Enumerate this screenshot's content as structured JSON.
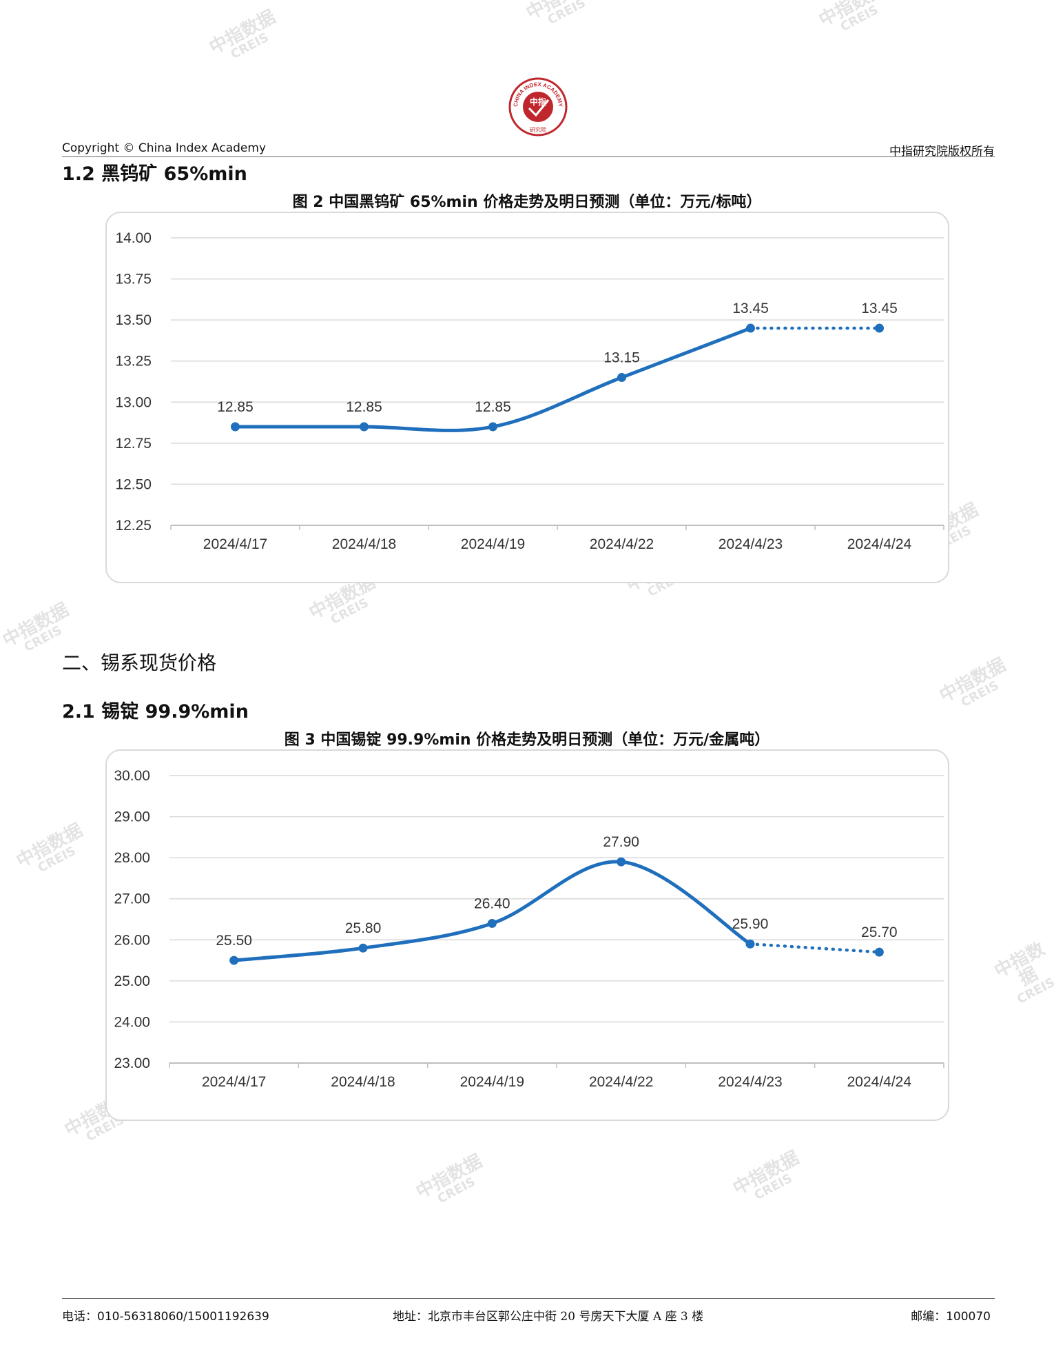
{
  "header": {
    "logo_text": "CHINA INDEX ACADEMY",
    "logo_center": "中指",
    "logo_bottom": "研究院",
    "copyright": "Copyright © China Index Academy",
    "rights": "中指研究院版权所有"
  },
  "watermark": {
    "cn": "中指数据",
    "en": "CREIS"
  },
  "section_1_2": {
    "heading": "1.2 黑钨矿 65%min"
  },
  "section_2": {
    "heading": "二、锡系现货价格"
  },
  "section_2_1": {
    "heading": "2.1 锡锭 99.9%min"
  },
  "chart_data": [
    {
      "type": "line",
      "title": "图 2 中国黑钨矿 65%min 价格走势及明日预测（单位：万元/标吨）",
      "categories": [
        "2024/4/17",
        "2024/4/18",
        "2024/4/19",
        "2024/4/22",
        "2024/4/23",
        "2024/4/24"
      ],
      "values": [
        12.85,
        12.85,
        12.85,
        13.15,
        13.45,
        13.45
      ],
      "data_labels": [
        "12.85",
        "12.85",
        "12.85",
        "13.15",
        "13.45",
        "13.45"
      ],
      "forecast_from_index": 4,
      "ylim": [
        12.25,
        14.0
      ],
      "yticks": [
        "12.25",
        "12.50",
        "12.75",
        "13.00",
        "13.25",
        "13.50",
        "13.75",
        "14.00"
      ],
      "grid": true,
      "color": "#1f6fbd"
    },
    {
      "type": "line",
      "title": "图 3 中国锡锭 99.9%min 价格走势及明日预测（单位：万元/金属吨）",
      "categories": [
        "2024/4/17",
        "2024/4/18",
        "2024/4/19",
        "2024/4/22",
        "2024/4/23",
        "2024/4/24"
      ],
      "values": [
        25.5,
        25.8,
        26.4,
        27.9,
        25.9,
        25.7
      ],
      "data_labels": [
        "25.50",
        "25.80",
        "26.40",
        "27.90",
        "25.90",
        "25.70"
      ],
      "forecast_from_index": 4,
      "ylim": [
        23.0,
        30.0
      ],
      "yticks": [
        "23.00",
        "24.00",
        "25.00",
        "26.00",
        "27.00",
        "28.00",
        "29.00",
        "30.00"
      ],
      "grid": true,
      "color": "#1f6fbd"
    }
  ],
  "footer": {
    "phone": "电话：010-56318060/15001192639",
    "address": "地址：北京市丰台区郭公庄中街 20 号房天下大厦 A 座 3 楼",
    "postcode": "邮编：100070"
  }
}
